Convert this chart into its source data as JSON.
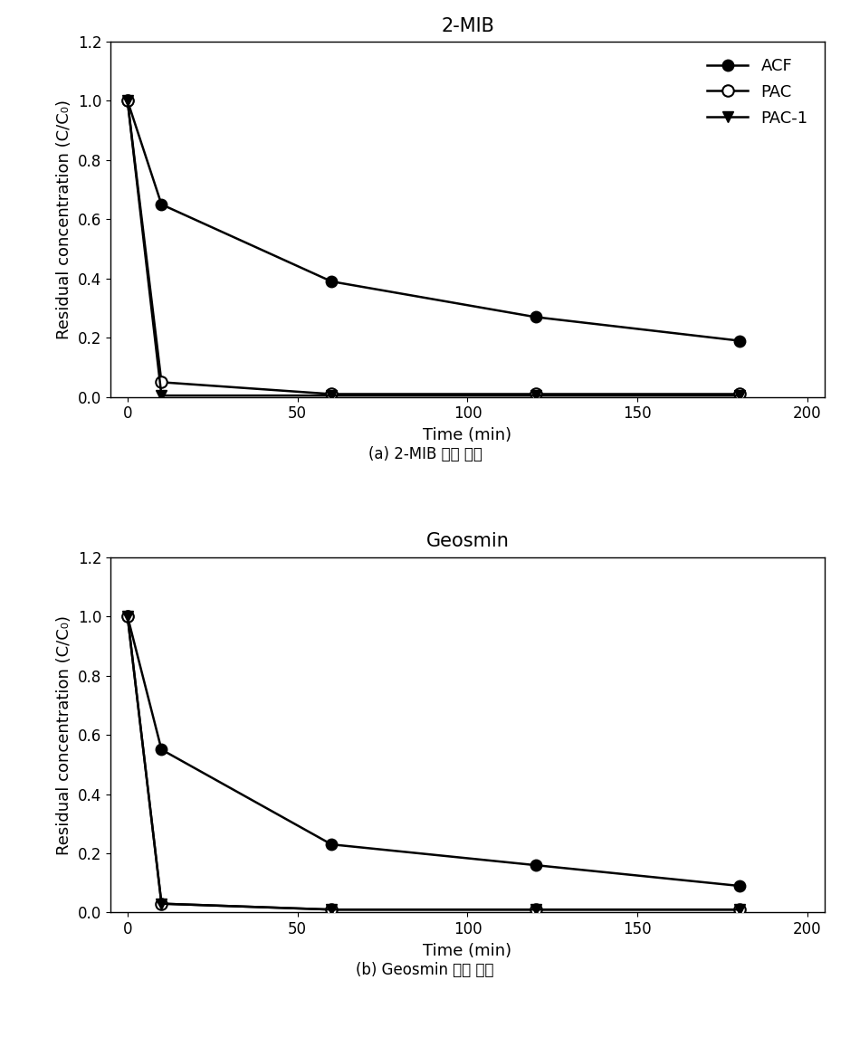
{
  "top_title": "2-MIB",
  "bottom_title": "Geosmin",
  "top_caption": "(a) 2-MIB 흡소 성능",
  "bottom_caption": "(b) Geosmin 흡소 성능",
  "xlabel": "Time (min)",
  "ylabel": "Residual concentration (C/C₀)",
  "time_points": [
    0,
    10,
    60,
    120,
    180
  ],
  "ACF_MIB": [
    1.0,
    0.65,
    0.39,
    0.27,
    0.19
  ],
  "PAC_MIB": [
    1.0,
    0.05,
    0.01,
    0.01,
    0.01
  ],
  "PAC1_MIB": [
    1.0,
    0.005,
    0.005,
    0.005,
    0.005
  ],
  "ACF_Geo": [
    1.0,
    0.55,
    0.23,
    0.16,
    0.09
  ],
  "PAC_Geo": [
    1.0,
    0.03,
    0.01,
    0.01,
    0.01
  ],
  "PAC1_Geo": [
    1.0,
    0.03,
    0.01,
    0.01,
    0.01
  ],
  "ylim": [
    0.0,
    1.2
  ],
  "yticks": [
    0.0,
    0.2,
    0.4,
    0.6,
    0.8,
    1.0,
    1.2
  ],
  "xlim": [
    -5,
    205
  ],
  "xticks": [
    0,
    50,
    100,
    150,
    200
  ],
  "line_color": "#000000",
  "marker_size": 9,
  "line_width": 1.8,
  "legend_labels": [
    "ACF",
    "PAC",
    "PAC-1"
  ],
  "title_fontsize": 15,
  "label_fontsize": 13,
  "tick_fontsize": 12,
  "legend_fontsize": 13,
  "caption_fontsize": 12
}
